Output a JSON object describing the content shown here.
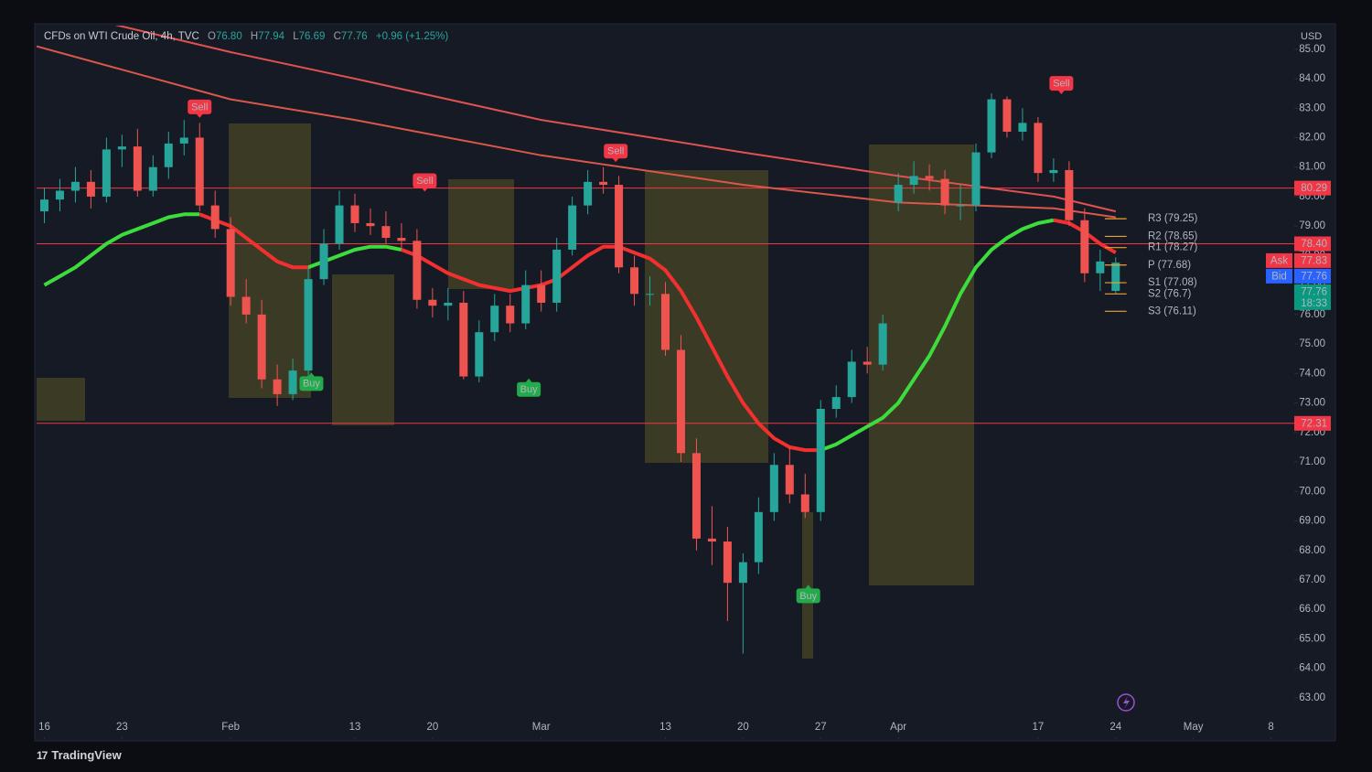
{
  "chart_data": {
    "type": "candlestick",
    "legend": {
      "symbol": "CFDs on WTI Crude Oil, 4h, TVC",
      "ohlc": [
        {
          "key": "O",
          "value": "76.80"
        },
        {
          "key": "H",
          "value": "77.94"
        },
        {
          "key": "L",
          "value": "76.69"
        },
        {
          "key": "C",
          "value": "77.76"
        }
      ],
      "change": "+0.96 (+1.25%)"
    },
    "currency": "USD",
    "brand": "TradingView",
    "up_color": "#26a69a",
    "down_color": "#ef5350",
    "grid": false,
    "xlim": [
      -0.5,
      80.5
    ],
    "ylim": [
      61.6,
      85.8
    ],
    "xticks": [
      {
        "value": 0,
        "label": "16"
      },
      {
        "value": 5,
        "label": "23"
      },
      {
        "value": 12,
        "label": "Feb"
      },
      {
        "value": 20,
        "label": "13"
      },
      {
        "value": 25,
        "label": "20"
      },
      {
        "value": 32,
        "label": "Mar"
      },
      {
        "value": 40,
        "label": "13"
      },
      {
        "value": 45,
        "label": "20"
      },
      {
        "value": 50,
        "label": "27"
      },
      {
        "value": 55,
        "label": "Apr"
      },
      {
        "value": 64,
        "label": "17"
      },
      {
        "value": 69,
        "label": "24"
      },
      {
        "value": 74,
        "label": "May"
      },
      {
        "value": 79,
        "label": "8"
      }
    ],
    "yticks": [
      {
        "value": 63,
        "label": "63.00"
      },
      {
        "value": 64,
        "label": "64.00"
      },
      {
        "value": 65,
        "label": "65.00"
      },
      {
        "value": 66,
        "label": "66.00"
      },
      {
        "value": 67,
        "label": "67.00"
      },
      {
        "value": 68,
        "label": "68.00"
      },
      {
        "value": 69,
        "label": "69.00"
      },
      {
        "value": 70,
        "label": "70.00"
      },
      {
        "value": 71,
        "label": "71.00"
      },
      {
        "value": 72,
        "label": "72.00"
      },
      {
        "value": 73,
        "label": "73.00"
      },
      {
        "value": 74,
        "label": "74.00"
      },
      {
        "value": 75,
        "label": "75.00"
      },
      {
        "value": 76,
        "label": "76.00"
      },
      {
        "value": 77,
        "label": "77.00"
      },
      {
        "value": 78,
        "label": "78.00"
      },
      {
        "value": 79,
        "label": "79.00"
      },
      {
        "value": 80,
        "label": "80.00"
      },
      {
        "value": 81,
        "label": "81.00"
      },
      {
        "value": 82,
        "label": "82.00"
      },
      {
        "value": 83,
        "label": "83.00"
      },
      {
        "value": 84,
        "label": "84.00"
      },
      {
        "value": 85,
        "label": "85.00"
      }
    ],
    "x": [
      0,
      1,
      2,
      3,
      4,
      5,
      6,
      7,
      8,
      9,
      10,
      11,
      12,
      13,
      14,
      15,
      16,
      17,
      18,
      19,
      20,
      21,
      22,
      23,
      24,
      25,
      26,
      27,
      28,
      29,
      30,
      31,
      32,
      33,
      34,
      35,
      36,
      37,
      38,
      39,
      40,
      41,
      42,
      43,
      44,
      45,
      46,
      47,
      48,
      49,
      50,
      51,
      52,
      53,
      54,
      55,
      56,
      57,
      58,
      59,
      60,
      61,
      62,
      63,
      64,
      65,
      66,
      67,
      68,
      69
    ],
    "open": [
      79.5,
      79.9,
      80.2,
      80.5,
      80.0,
      81.6,
      81.7,
      80.2,
      81.0,
      81.8,
      82.0,
      79.7,
      78.9,
      76.6,
      76.0,
      73.8,
      73.3,
      74.1,
      77.2,
      78.4,
      79.7,
      79.1,
      79.0,
      78.6,
      78.5,
      76.5,
      76.3,
      76.4,
      73.9,
      75.4,
      76.3,
      75.7,
      77.0,
      76.4,
      78.2,
      79.7,
      80.5,
      80.4,
      77.6,
      76.7,
      76.7,
      74.8,
      71.3,
      68.4,
      68.3,
      66.9,
      67.6,
      69.3,
      70.9,
      69.9,
      69.3,
      72.8,
      73.2,
      74.4,
      74.3,
      79.8,
      80.4,
      80.7,
      80.6,
      79.7,
      79.7,
      81.5,
      83.3,
      82.2,
      82.5,
      80.8,
      80.9,
      79.2,
      77.4,
      76.8
    ],
    "high": [
      80.3,
      80.6,
      81.0,
      80.9,
      82.0,
      82.1,
      82.3,
      81.4,
      82.2,
      82.6,
      82.5,
      80.2,
      79.3,
      77.2,
      76.5,
      74.3,
      74.5,
      77.6,
      78.9,
      80.2,
      80.1,
      79.6,
      79.5,
      79.1,
      78.9,
      76.9,
      76.9,
      76.8,
      75.8,
      76.7,
      76.7,
      77.5,
      77.5,
      78.6,
      80.0,
      80.9,
      81.0,
      80.7,
      78.0,
      77.3,
      77.1,
      75.3,
      71.8,
      69.5,
      68.8,
      67.9,
      69.8,
      71.3,
      71.5,
      70.6,
      73.1,
      73.6,
      74.8,
      74.9,
      76.0,
      80.8,
      81.2,
      81.1,
      80.9,
      80.4,
      81.8,
      83.5,
      83.4,
      83.0,
      82.7,
      81.3,
      81.2,
      79.6,
      78.2,
      77.94
    ],
    "low": [
      79.1,
      79.5,
      79.8,
      79.6,
      79.8,
      81.0,
      80.0,
      80.0,
      80.6,
      81.4,
      79.5,
      78.6,
      76.3,
      75.7,
      73.5,
      72.9,
      73.1,
      73.9,
      77.0,
      78.2,
      78.8,
      78.7,
      78.4,
      78.2,
      76.2,
      75.9,
      75.8,
      73.8,
      73.7,
      75.1,
      75.4,
      75.5,
      76.1,
      76.1,
      78.0,
      79.4,
      80.1,
      77.4,
      76.3,
      76.3,
      74.6,
      71.0,
      68.0,
      67.5,
      65.6,
      64.5,
      67.2,
      69.0,
      69.6,
      69.1,
      69.0,
      72.5,
      73.0,
      74.0,
      74.1,
      79.5,
      80.1,
      80.2,
      79.4,
      79.2,
      79.5,
      81.3,
      82.0,
      81.9,
      80.5,
      80.5,
      79.0,
      77.1,
      76.8,
      76.69
    ],
    "close": [
      79.9,
      80.2,
      80.5,
      80.0,
      81.6,
      81.7,
      80.2,
      81.0,
      81.8,
      82.0,
      79.7,
      78.9,
      76.6,
      76.0,
      73.8,
      73.3,
      74.1,
      77.2,
      78.4,
      79.7,
      79.1,
      79.0,
      78.6,
      78.5,
      76.5,
      76.3,
      76.4,
      73.9,
      75.4,
      76.3,
      75.7,
      77.0,
      76.4,
      78.2,
      79.7,
      80.5,
      80.4,
      77.6,
      76.7,
      76.7,
      74.8,
      71.3,
      68.4,
      68.3,
      66.9,
      67.6,
      69.3,
      70.9,
      69.9,
      69.3,
      72.8,
      73.2,
      74.4,
      74.3,
      75.7,
      80.4,
      80.7,
      80.6,
      79.7,
      79.7,
      81.5,
      83.3,
      82.2,
      82.5,
      80.8,
      80.9,
      79.2,
      77.4,
      77.8,
      77.76
    ],
    "overlays": [
      {
        "color": "#e0524f",
        "width": 2,
        "x": [
          0,
          4,
          12,
          20,
          32,
          45,
          55,
          65,
          69
        ],
        "values": [
          86.3,
          85.9,
          84.9,
          84.0,
          82.6,
          81.5,
          80.7,
          80.0,
          79.5
        ]
      },
      {
        "color": "#d9584a",
        "width": 2,
        "x": [
          -0.5,
          12,
          20,
          32,
          45,
          55,
          65,
          69
        ],
        "values": [
          85.1,
          83.3,
          82.6,
          81.4,
          80.4,
          79.8,
          79.6,
          79.3
        ]
      },
      {
        "color": "#3ddc3d",
        "width": 4,
        "values": [
          77.0,
          77.3,
          77.6,
          78.0,
          78.4,
          78.7,
          78.9,
          79.1,
          79.3,
          79.4,
          79.4,
          null,
          null,
          null,
          null,
          null,
          null,
          77.6,
          77.8,
          78.0,
          78.2,
          78.3,
          78.3,
          78.2,
          null,
          null,
          null,
          null,
          null,
          null,
          null,
          null,
          null,
          null,
          null,
          null,
          null,
          null,
          null,
          null,
          null,
          null,
          null,
          null,
          null,
          null,
          null,
          null,
          null,
          null,
          71.4,
          71.6,
          71.9,
          72.2,
          72.5,
          73.0,
          73.8,
          74.6,
          75.6,
          76.7,
          77.6,
          78.2,
          78.6,
          78.9,
          79.1,
          79.2,
          null,
          null,
          null,
          null
        ]
      },
      {
        "color": "#f23030",
        "width": 4,
        "values": [
          null,
          null,
          null,
          null,
          null,
          null,
          null,
          null,
          null,
          null,
          79.4,
          79.2,
          79.0,
          78.6,
          78.2,
          77.8,
          77.6,
          77.6,
          null,
          null,
          null,
          null,
          null,
          78.2,
          78.0,
          77.7,
          77.4,
          77.2,
          77.0,
          76.9,
          76.8,
          76.9,
          77.0,
          77.2,
          77.6,
          78.0,
          78.3,
          78.3,
          78.1,
          77.9,
          77.5,
          76.8,
          75.9,
          74.9,
          73.9,
          73.0,
          72.3,
          71.8,
          71.5,
          71.4,
          71.4,
          null,
          null,
          null,
          null,
          null,
          null,
          null,
          null,
          null,
          null,
          null,
          null,
          null,
          null,
          79.2,
          79.1,
          78.8,
          78.4,
          78.1
        ]
      }
    ],
    "signals": [
      {
        "label": "Sell",
        "x": 10,
        "price": 82.7
      },
      {
        "label": "Sell",
        "x": 24.5,
        "price": 80.2
      },
      {
        "label": "Sell",
        "x": 36.8,
        "price": 81.2
      },
      {
        "label": "Sell",
        "x": 65.5,
        "price": 83.5
      },
      {
        "label": "Buy",
        "x": 17.2,
        "price": 74.0
      },
      {
        "label": "Buy",
        "x": 31.2,
        "price": 73.8
      },
      {
        "label": "Buy",
        "x": 49.2,
        "price": 66.8
      }
    ],
    "pivots": [
      {
        "value": 79.25,
        "label": "R3 (79.25)"
      },
      {
        "value": 78.65,
        "label": "R2 (78.65)"
      },
      {
        "value": 78.27,
        "label": "R1 (78.27)"
      },
      {
        "value": 77.68,
        "label": "P (77.68)"
      },
      {
        "value": 77.08,
        "label": "S1 (77.08)"
      },
      {
        "value": 76.7,
        "label": "S2 (76.7)"
      },
      {
        "value": 76.11,
        "label": "S3 (76.11)"
      }
    ],
    "pivot_color": "#f0a030",
    "price_tags": [
      {
        "value": 80.29,
        "label": "80.29",
        "color": "#f23645",
        "line": true
      },
      {
        "value": 78.4,
        "label": "78.40",
        "color": "#f23645",
        "line": true
      },
      {
        "value": 77.83,
        "label": "77.83",
        "tag": "Ask",
        "color": "#f23645"
      },
      {
        "value": 77.76,
        "label": "77.76",
        "tag": "Bid",
        "color": "#2962ff"
      },
      {
        "value": 77.76,
        "label": "77.76",
        "time": "18:33",
        "color": "#089981"
      },
      {
        "value": 72.31,
        "label": "72.31",
        "color": "#f23645",
        "line": true
      }
    ]
  }
}
